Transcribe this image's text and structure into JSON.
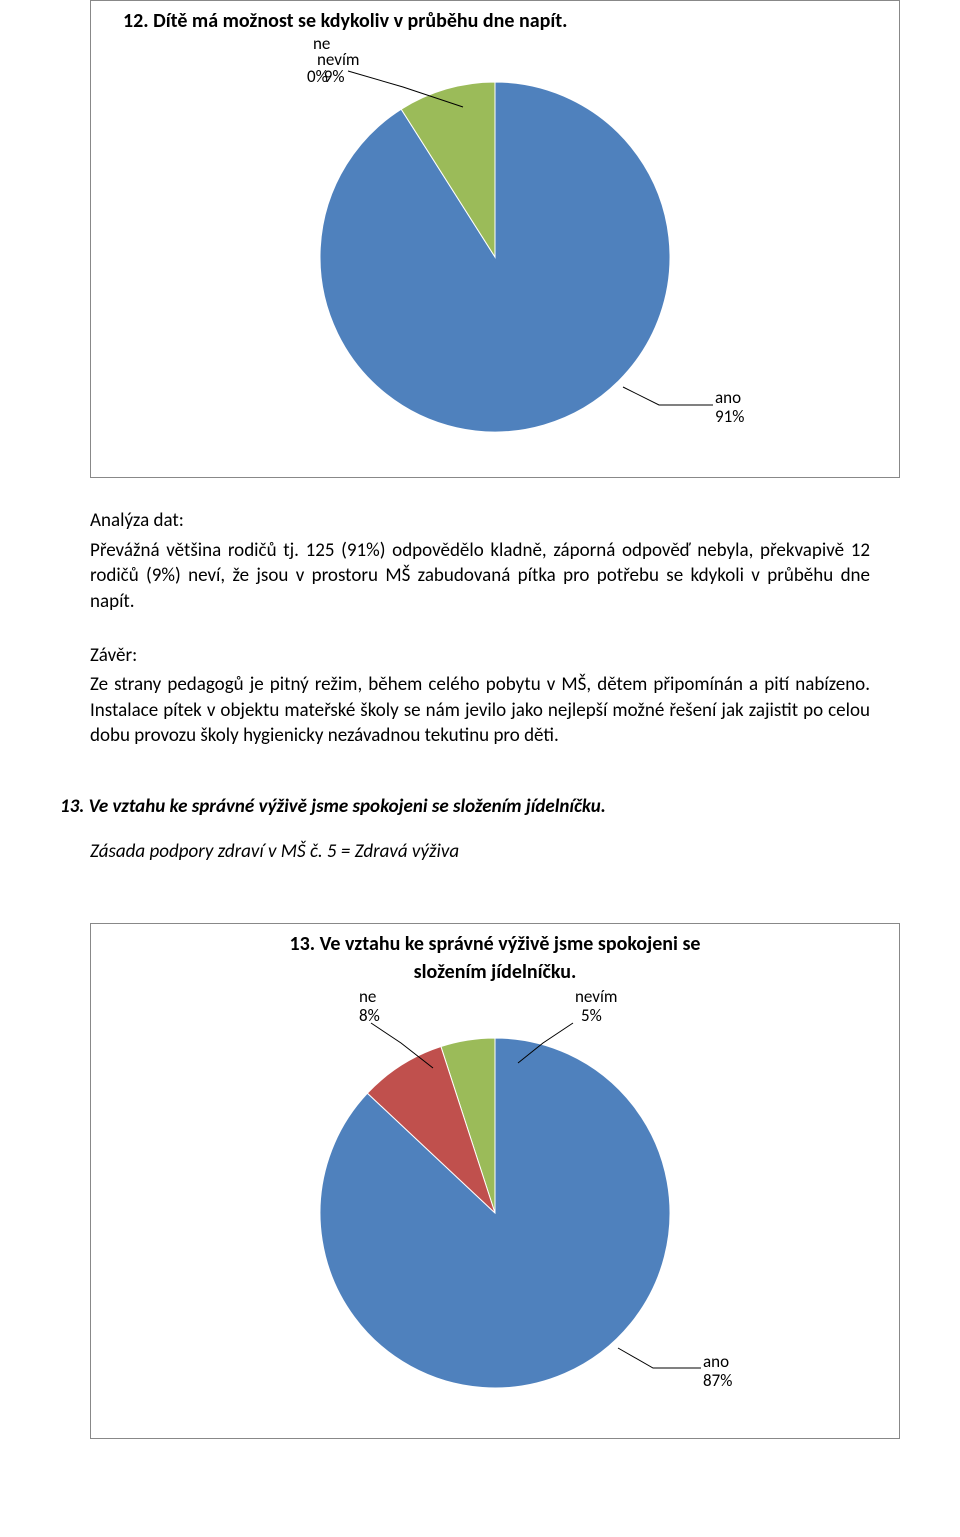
{
  "chart1": {
    "type": "pie",
    "title": "12. Dítě má možnost se kdykoliv v průběhu dne napít.",
    "labels": {
      "ne": "ne",
      "nevim": "nevím",
      "ano": "ano"
    },
    "values": {
      "ne_pct": "0%",
      "nevim_pct": "9%",
      "ano_pct": "91%"
    },
    "slices": [
      {
        "name": "ano",
        "value": 91,
        "color": "#4f81bd"
      },
      {
        "name": "nevim",
        "value": 9,
        "color": "#9bbb59"
      },
      {
        "name": "ne",
        "value": 0,
        "color": "#c0504d"
      }
    ],
    "pie_radius": 175,
    "background": "#ffffff",
    "border_color": "#888888"
  },
  "analysis": {
    "header": "Analýza dat:",
    "body": "Převážná většina rodičů tj. 125 (91%) odpovědělo kladně, záporná odpověď nebyla, překvapivě 12 rodičů (9%) neví, že jsou v prostoru MŠ zabudovaná pítka pro potřebu se kdykoli v průběhu dne napít."
  },
  "conclusion": {
    "header": "Závěr:",
    "body": "Ze strany pedagogů je pitný režim, během celého pobytu v MŠ, dětem připomínán a pití nabízeno. Instalace pítek v objektu mateřské školy se nám jevilo jako nejlepší možné řešení jak zajistit po celou dobu provozu školy hygienicky nezávadnou tekutinu pro děti."
  },
  "section13": {
    "heading": "13. Ve vztahu ke správné výživě jsme spokojeni se složením jídelníčku.",
    "subheading": "Zásada podpory zdraví v MŠ č. 5 = Zdravá výživa"
  },
  "chart2": {
    "type": "pie",
    "title_line1": "13. Ve vztahu ke správné výživě jsme spokojeni se",
    "title_line2": "složením jídelníčku.",
    "labels": {
      "ne": "ne",
      "nevim": "nevím",
      "ano": "ano"
    },
    "values": {
      "ne_pct": "8%",
      "nevim_pct": "5%",
      "ano_pct": "87%"
    },
    "slices": [
      {
        "name": "ano",
        "value": 87,
        "color": "#4f81bd"
      },
      {
        "name": "ne",
        "value": 8,
        "color": "#c0504d"
      },
      {
        "name": "nevim",
        "value": 5,
        "color": "#9bbb59"
      }
    ],
    "pie_radius": 175,
    "background": "#ffffff",
    "border_color": "#888888"
  },
  "style": {
    "font_family": "Calibri, Arial, sans-serif",
    "title_fontsize_pt": 15,
    "body_fontsize_pt": 14,
    "callout_fontsize_pt": 13,
    "slice_border_color": "#ffffff",
    "slice_border_width": 1
  }
}
